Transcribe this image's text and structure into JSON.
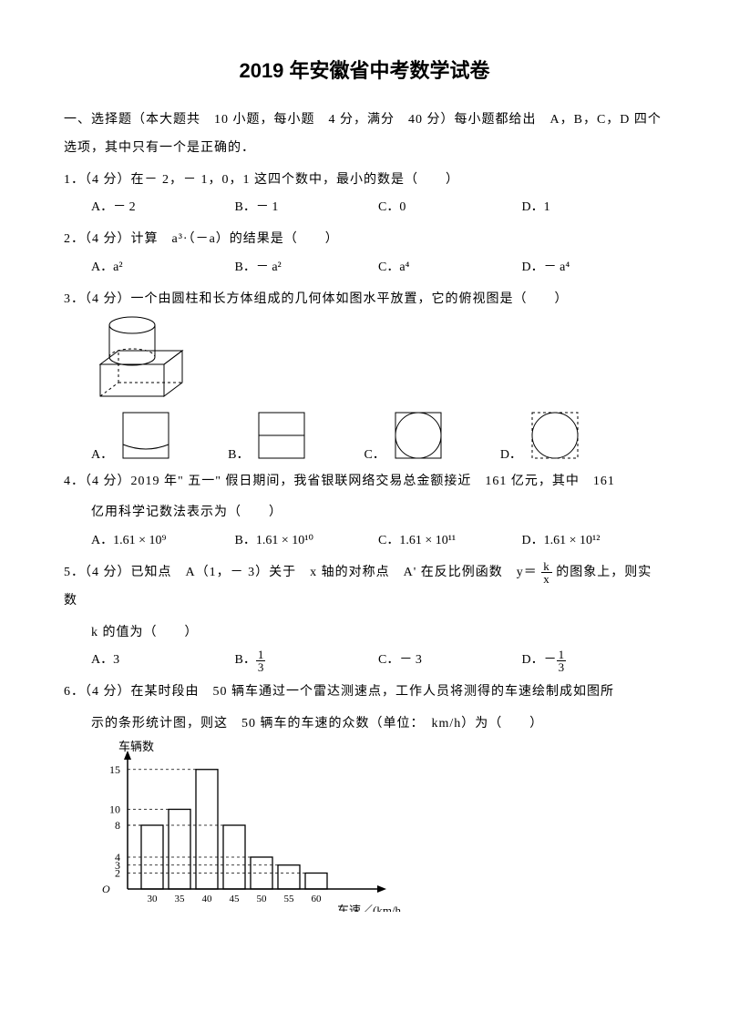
{
  "title": "2019 年安徽省中考数学试卷",
  "section1": "一、选择题（本大题共　10 小题，每小题　4 分，满分　40 分）每小题都给出　A，B，C，D 四个选项，其中只有一个是正确的．",
  "q1": {
    "stem": "1．（4 分）在－ 2，－ 1，0，1 这四个数中，最小的数是（　　）",
    "A": "A．－ 2",
    "B": "B．－ 1",
    "C": "C．0",
    "D": "D．1"
  },
  "q2": {
    "stem": "2．（4 分）计算　a³·（－a）的结果是（　　）",
    "A": "A．a²",
    "B": "B．－ a²",
    "C": "C．a⁴",
    "D": "D．－ a⁴"
  },
  "q3": {
    "stem": "3．（4 分）一个由圆柱和长方体组成的几何体如图水平放置，它的俯视图是（　　）",
    "A": "A．",
    "B": "B．",
    "C": "C．",
    "D": "D．"
  },
  "q4": {
    "stem1": "4．（4 分）2019 年\" 五一\" 假日期间，我省银联网络交易总金额接近　161 亿元，其中　161",
    "stem2": "亿用科学记数法表示为（　　）",
    "A": "A．1.61 × 10⁹",
    "B": "B．1.61 × 10¹⁰",
    "C": "C．1.61 × 10¹¹",
    "D": "D．1.61 × 10¹²"
  },
  "q5": {
    "stem1a": "5．（4 分）已知点　A（1，－ 3）关于　x 轴的对称点　A' 在反比例函数　y＝",
    "stem1b": " 的图象上，则实数",
    "stem2": "k 的值为（　　）",
    "A": "A．3",
    "B": "B．",
    "C": "C．－ 3",
    "D": "D．－",
    "fracN": "1",
    "fracD": "3",
    "kx_n": "k",
    "kx_d": "x"
  },
  "q6": {
    "stem1": "6．（4 分）在某时段由　50 辆车通过一个雷达测速点，工作人员将测得的车速绘制成如图所",
    "stem2": "示的条形统计图，则这　50 辆车的车速的众数（单位：　km/h）为（　　）",
    "ylabel": "车辆数",
    "xlabel": "车速／(km/h)",
    "yticks": [
      2,
      3,
      4,
      8,
      10,
      15
    ],
    "xticks": [
      30,
      35,
      40,
      45,
      50,
      55,
      60
    ],
    "bars": [
      {
        "x": 30,
        "h": 8
      },
      {
        "x": 35,
        "h": 10
      },
      {
        "x": 40,
        "h": 15
      },
      {
        "x": 45,
        "h": 8
      },
      {
        "x": 50,
        "h": 4
      },
      {
        "x": 55,
        "h": 3
      },
      {
        "x": 60,
        "h": 2
      }
    ]
  },
  "colors": {
    "ink": "#000000",
    "bg": "#ffffff"
  }
}
